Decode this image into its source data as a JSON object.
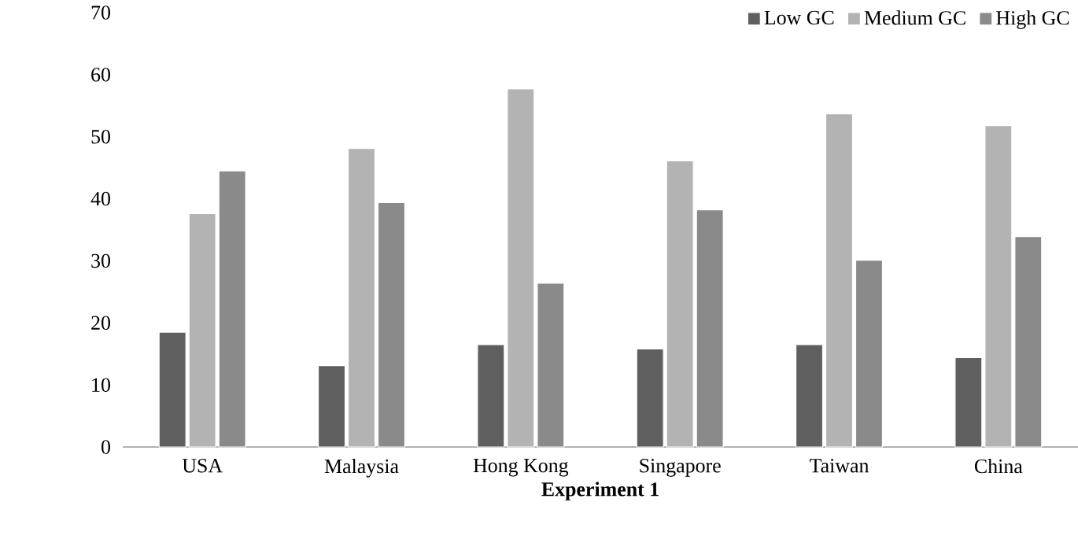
{
  "chart_data": {
    "type": "bar",
    "xlabel": "**Experiment 1**",
    "categories": [
      "USA",
      "Malaysia",
      "Hong Kong",
      "Singapore",
      "Taiwan",
      "China"
    ],
    "series": [
      {
        "name": "Low GC",
        "color": "#5f5f5f",
        "values": [
          18.5,
          13.1,
          16.5,
          15.8,
          16.5,
          14.4
        ]
      },
      {
        "name": "Medium GC",
        "color": "#b3b3b3",
        "values": [
          37.6,
          48.1,
          57.7,
          46.1,
          53.7,
          51.8
        ]
      },
      {
        "name": "High GC",
        "color": "#8a8a8a",
        "values": [
          44.5,
          39.4,
          26.4,
          38.2,
          30.1,
          33.9
        ]
      }
    ],
    "ylim": [
      0,
      70
    ],
    "yticks": [
      0,
      10,
      20,
      30,
      40,
      50,
      60,
      70
    ],
    "legend": "top right"
  }
}
